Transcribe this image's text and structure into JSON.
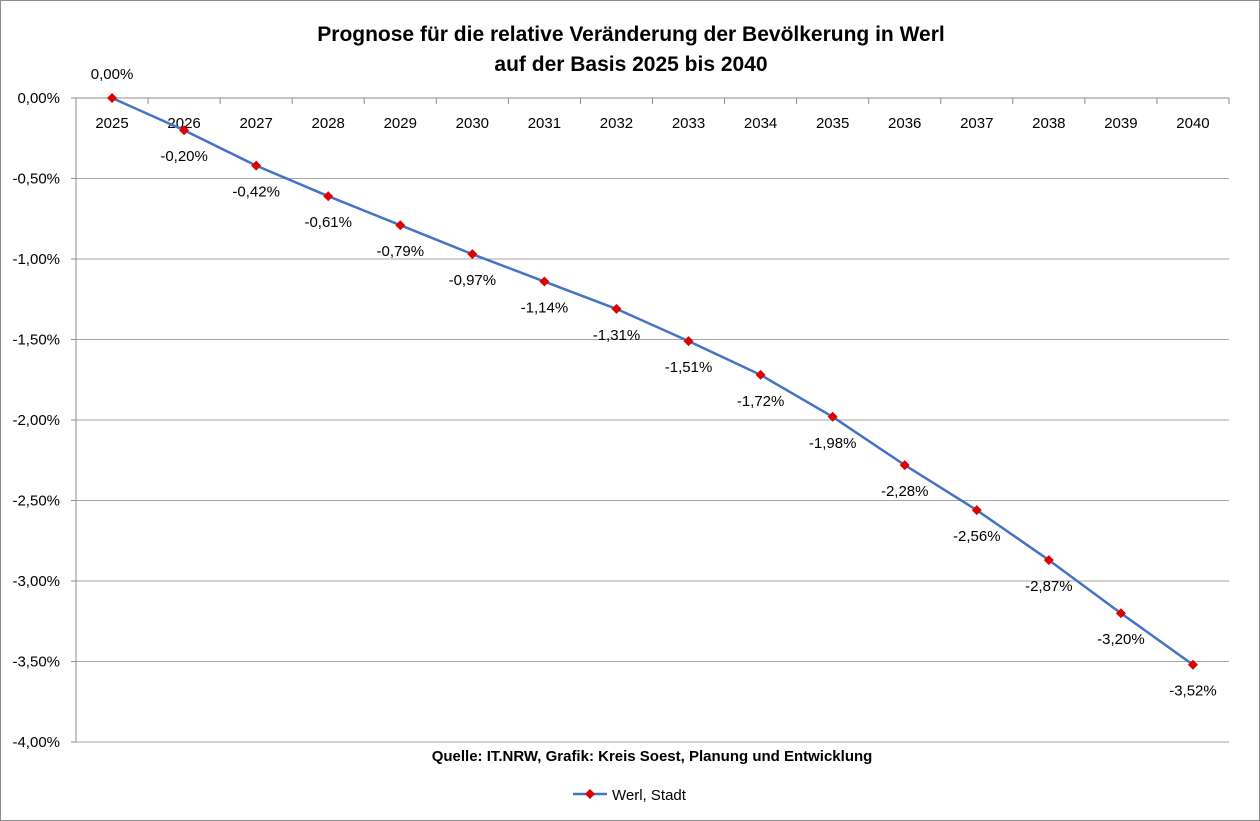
{
  "chart_data": {
    "type": "line",
    "title": "Prognose für die relative Veränderung der Bevölkerung in Werl",
    "subtitle": "auf der Basis 2025 bis 2040",
    "categories": [
      "2025",
      "2026",
      "2027",
      "2028",
      "2029",
      "2030",
      "2031",
      "2032",
      "2033",
      "2034",
      "2035",
      "2036",
      "2037",
      "2038",
      "2039",
      "2040"
    ],
    "series": [
      {
        "name": "Werl, Stadt",
        "values": [
          0.0,
          -0.2,
          -0.42,
          -0.61,
          -0.79,
          -0.97,
          -1.14,
          -1.31,
          -1.51,
          -1.72,
          -1.98,
          -2.28,
          -2.56,
          -2.87,
          -3.2,
          -3.52
        ],
        "labels": [
          "0,00%",
          "-0,20%",
          "-0,42%",
          "-0,61%",
          "-0,79%",
          "-0,97%",
          "-1,14%",
          "-1,31%",
          "-1,51%",
          "-1,72%",
          "-1,98%",
          "-2,28%",
          "-2,56%",
          "-2,87%",
          "-3,20%",
          "-3,52%"
        ],
        "line_color": "#4472C4",
        "marker_color": "#E00000",
        "marker": "diamond"
      }
    ],
    "ylim": [
      -4.0,
      0.0
    ],
    "yticks": [
      0.0,
      -0.5,
      -1.0,
      -1.5,
      -2.0,
      -2.5,
      -3.0,
      -3.5,
      -4.0
    ],
    "ytick_labels": [
      "0,00%",
      "-0,50%",
      "-1,00%",
      "-1,50%",
      "-2,00%",
      "-2,50%",
      "-3,00%",
      "-3,50%",
      "-4,00%"
    ],
    "grid": true,
    "legend_position": "bottom-center",
    "source_note": "Quelle: IT.NRW, Grafik: Kreis Soest, Planung und Entwicklung"
  }
}
